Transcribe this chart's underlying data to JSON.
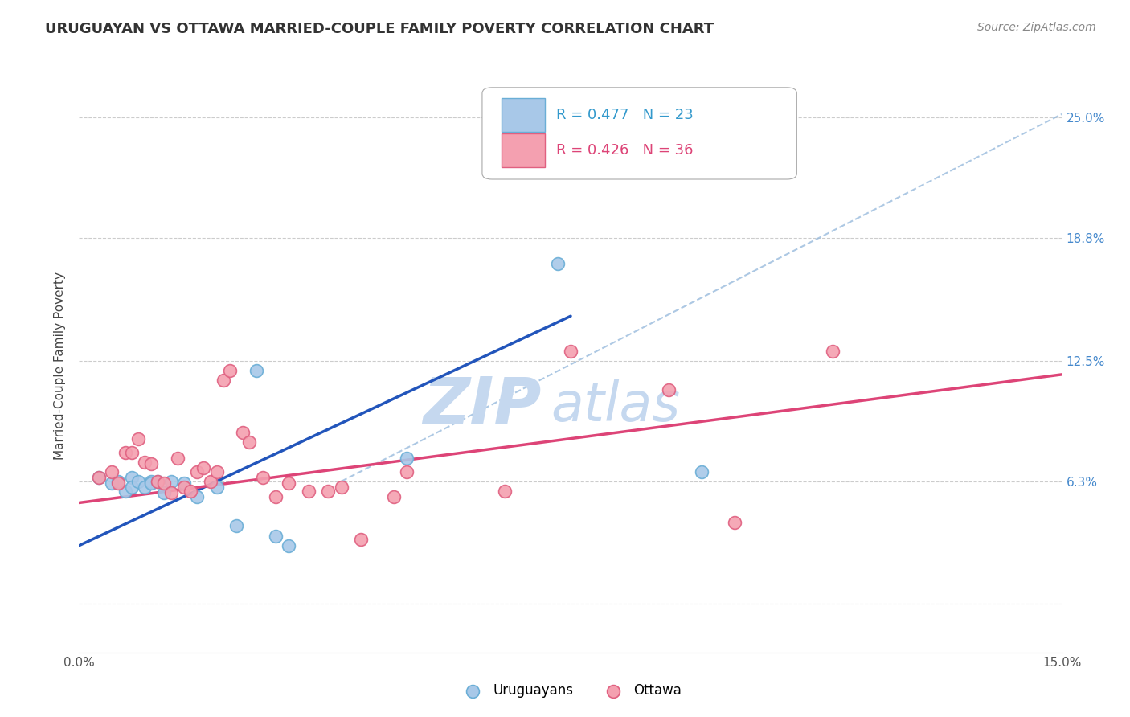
{
  "title": "URUGUAYAN VS OTTAWA MARRIED-COUPLE FAMILY POVERTY CORRELATION CHART",
  "source": "Source: ZipAtlas.com",
  "ylabel": "Married-Couple Family Poverty",
  "xlim": [
    0.0,
    0.15
  ],
  "ylim": [
    -0.025,
    0.27
  ],
  "yticks": [
    0.0,
    0.063,
    0.125,
    0.188,
    0.25
  ],
  "ytick_labels_right": [
    "",
    "6.3%",
    "12.5%",
    "18.8%",
    "25.0%"
  ],
  "xticks": [
    0.0,
    0.025,
    0.05,
    0.075,
    0.1,
    0.125,
    0.15
  ],
  "xtick_labels": [
    "0.0%",
    "",
    "",
    "",
    "",
    "",
    "15.0%"
  ],
  "uruguayan_color": "#a8c8e8",
  "uruguayan_edge": "#6aaed6",
  "ottawa_color": "#f4a0b0",
  "ottawa_edge": "#e06080",
  "blue_line_color": "#2255bb",
  "pink_line_color": "#dd4477",
  "dashed_line_color": "#99bbdd",
  "watermark_zip_color": "#c5d8ef",
  "watermark_atlas_color": "#c5d8ef",
  "uruguayan_x": [
    0.003,
    0.005,
    0.006,
    0.007,
    0.008,
    0.008,
    0.009,
    0.01,
    0.011,
    0.011,
    0.012,
    0.013,
    0.014,
    0.016,
    0.018,
    0.021,
    0.024,
    0.027,
    0.03,
    0.032,
    0.05,
    0.073,
    0.095
  ],
  "uruguayan_y": [
    0.065,
    0.062,
    0.063,
    0.058,
    0.065,
    0.06,
    0.063,
    0.06,
    0.063,
    0.062,
    0.063,
    0.057,
    0.063,
    0.062,
    0.055,
    0.06,
    0.04,
    0.12,
    0.035,
    0.03,
    0.075,
    0.175,
    0.068
  ],
  "ottawa_x": [
    0.003,
    0.005,
    0.006,
    0.007,
    0.008,
    0.009,
    0.01,
    0.011,
    0.012,
    0.013,
    0.014,
    0.015,
    0.016,
    0.017,
    0.018,
    0.019,
    0.02,
    0.021,
    0.022,
    0.023,
    0.025,
    0.026,
    0.028,
    0.03,
    0.032,
    0.035,
    0.038,
    0.04,
    0.043,
    0.048,
    0.05,
    0.065,
    0.075,
    0.09,
    0.1,
    0.115
  ],
  "ottawa_y": [
    0.065,
    0.068,
    0.062,
    0.078,
    0.078,
    0.085,
    0.073,
    0.072,
    0.063,
    0.062,
    0.057,
    0.075,
    0.06,
    0.058,
    0.068,
    0.07,
    0.063,
    0.068,
    0.115,
    0.12,
    0.088,
    0.083,
    0.065,
    0.055,
    0.062,
    0.058,
    0.058,
    0.06,
    0.033,
    0.055,
    0.068,
    0.058,
    0.13,
    0.11,
    0.042,
    0.13
  ],
  "blue_line_x0": 0.0,
  "blue_line_y0": 0.03,
  "blue_line_x1": 0.075,
  "blue_line_y1": 0.148,
  "pink_line_x0": 0.0,
  "pink_line_y0": 0.052,
  "pink_line_x1": 0.15,
  "pink_line_y1": 0.118,
  "dashed_line_x0": 0.04,
  "dashed_line_y0": 0.063,
  "dashed_line_x1": 0.15,
  "dashed_line_y1": 0.252,
  "marker_size": 130,
  "background_color": "#ffffff",
  "grid_color": "#cccccc",
  "legend_R1": "R = 0.477",
  "legend_N1": "N = 23",
  "legend_R2": "R = 0.426",
  "legend_N2": "N = 36",
  "legend_label1": "Uruguayans",
  "legend_label2": "Ottawa"
}
